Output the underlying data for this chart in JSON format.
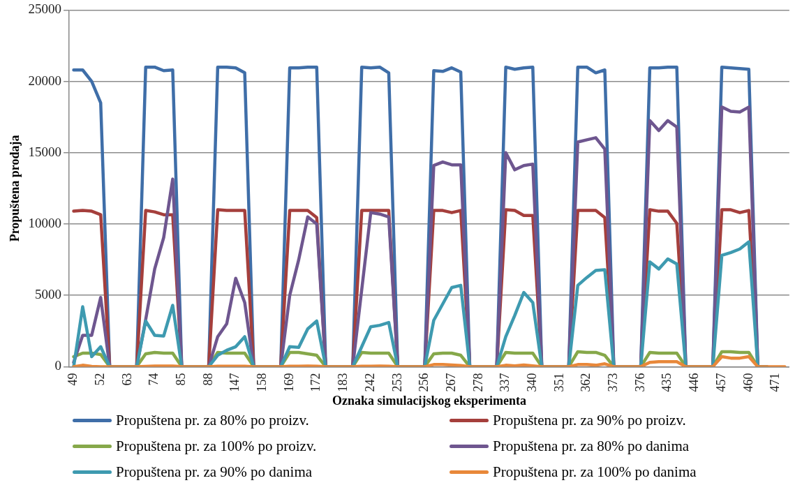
{
  "chart_data": {
    "type": "line",
    "xlabel": "Oznaka simulacijskog eksperimenta",
    "ylabel": "Propuštena prodaja",
    "categories": [
      "49",
      null,
      null,
      "52",
      null,
      null,
      "63",
      null,
      null,
      "74",
      null,
      null,
      "85",
      null,
      null,
      "88",
      null,
      null,
      "147",
      null,
      null,
      "158",
      null,
      null,
      "169",
      null,
      null,
      "172",
      null,
      null,
      "183",
      null,
      null,
      "242",
      null,
      null,
      "253",
      null,
      null,
      "256",
      null,
      null,
      "267",
      null,
      null,
      "278",
      null,
      null,
      "337",
      null,
      null,
      "340",
      null,
      null,
      "351",
      null,
      null,
      "362",
      null,
      null,
      "373",
      null,
      null,
      "376",
      null,
      null,
      "435",
      null,
      null,
      "446",
      null,
      null,
      "457",
      null,
      null,
      "460",
      null,
      null,
      "471",
      null
    ],
    "series": [
      {
        "name": "Propuštena pr. za 80% po proizv.",
        "color": "#3f6ea8",
        "values": [
          20800,
          20800,
          20000,
          18500,
          0,
          0,
          0,
          0,
          21000,
          21000,
          20750,
          20800,
          0,
          0,
          0,
          0,
          21000,
          21000,
          20950,
          20600,
          0,
          0,
          0,
          0,
          20950,
          20950,
          21000,
          21000,
          0,
          0,
          0,
          0,
          21000,
          20950,
          21000,
          20600,
          0,
          0,
          0,
          0,
          20750,
          20700,
          20950,
          20650,
          0,
          0,
          0,
          0,
          21000,
          20850,
          20950,
          21000,
          0,
          0,
          0,
          0,
          21000,
          21000,
          20600,
          20800,
          0,
          0,
          0,
          0,
          20950,
          20950,
          21000,
          21000,
          0,
          0,
          0,
          0,
          21000,
          20950,
          20900,
          20850,
          0,
          0,
          null,
          null
        ]
      },
      {
        "name": "Propuštena pr. za 90% po proizv.",
        "color": "#a53f3c",
        "values": [
          10900,
          10950,
          10900,
          10650,
          0,
          0,
          0,
          0,
          10950,
          10850,
          10650,
          10650,
          0,
          0,
          0,
          0,
          11000,
          10950,
          10950,
          10950,
          0,
          0,
          0,
          0,
          10950,
          10950,
          10950,
          10450,
          0,
          0,
          0,
          0,
          10950,
          10950,
          10950,
          10950,
          0,
          0,
          0,
          0,
          10950,
          10950,
          10800,
          10950,
          0,
          0,
          0,
          0,
          11000,
          10950,
          10600,
          10600,
          0,
          0,
          0,
          0,
          10950,
          10950,
          10950,
          10450,
          0,
          0,
          0,
          0,
          11000,
          10900,
          10900,
          10050,
          0,
          0,
          0,
          0,
          11000,
          11000,
          10800,
          10950,
          0,
          0,
          null,
          null
        ]
      },
      {
        "name": "Propuštena pr. za 100% po proizv.",
        "color": "#86a84a",
        "values": [
          700,
          950,
          950,
          850,
          0,
          0,
          0,
          0,
          900,
          1000,
          950,
          950,
          0,
          0,
          0,
          0,
          1000,
          950,
          950,
          950,
          0,
          0,
          0,
          0,
          1000,
          1000,
          900,
          800,
          0,
          0,
          0,
          0,
          1000,
          950,
          950,
          950,
          0,
          0,
          0,
          0,
          900,
          950,
          950,
          800,
          0,
          0,
          0,
          0,
          1000,
          950,
          950,
          950,
          0,
          0,
          0,
          0,
          1050,
          1000,
          1000,
          800,
          0,
          0,
          0,
          0,
          1000,
          950,
          950,
          950,
          0,
          0,
          0,
          0,
          1050,
          1050,
          1000,
          1000,
          0,
          0,
          null,
          null
        ]
      },
      {
        "name": "Propuštena pr. za 80% po danima",
        "color": "#6e568f",
        "values": [
          300,
          2200,
          2200,
          4850,
          0,
          0,
          0,
          0,
          3300,
          6850,
          9050,
          13150,
          0,
          0,
          0,
          0,
          2100,
          3000,
          6200,
          4500,
          0,
          0,
          0,
          0,
          5000,
          7500,
          10500,
          10000,
          0,
          0,
          0,
          0,
          5400,
          10800,
          10700,
          10500,
          0,
          0,
          0,
          0,
          14100,
          14350,
          14150,
          14150,
          0,
          0,
          0,
          0,
          15000,
          13800,
          14100,
          14200,
          0,
          0,
          0,
          0,
          15750,
          15900,
          16050,
          15250,
          0,
          0,
          0,
          0,
          17250,
          16550,
          17250,
          16800,
          0,
          0,
          0,
          0,
          18200,
          17900,
          17850,
          18200,
          0,
          0,
          null,
          null
        ]
      },
      {
        "name": "Propuštena pr. za 90% po danima",
        "color": "#3e9ab0",
        "values": [
          0,
          4200,
          700,
          1400,
          0,
          0,
          0,
          0,
          3200,
          2200,
          2150,
          4300,
          0,
          0,
          0,
          0,
          800,
          1150,
          1400,
          2100,
          0,
          0,
          0,
          0,
          1400,
          1350,
          2650,
          3200,
          0,
          0,
          0,
          0,
          1400,
          2800,
          2900,
          3100,
          0,
          0,
          0,
          0,
          3250,
          4400,
          5550,
          5700,
          0,
          0,
          0,
          0,
          2100,
          3600,
          5200,
          4500,
          0,
          0,
          0,
          0,
          5700,
          6250,
          6750,
          6800,
          0,
          0,
          0,
          0,
          7350,
          6850,
          7550,
          7200,
          0,
          0,
          0,
          0,
          7800,
          8000,
          8250,
          8750,
          0,
          0,
          null,
          null
        ]
      },
      {
        "name": "Propuštena pr. za 100% po danima",
        "color": "#e8883a",
        "values": [
          0,
          100,
          20,
          0,
          0,
          0,
          0,
          0,
          20,
          50,
          50,
          50,
          0,
          0,
          0,
          0,
          30,
          30,
          30,
          30,
          0,
          0,
          0,
          0,
          30,
          30,
          50,
          30,
          0,
          0,
          0,
          0,
          30,
          30,
          50,
          30,
          0,
          0,
          0,
          0,
          150,
          150,
          120,
          80,
          0,
          0,
          0,
          0,
          100,
          60,
          120,
          60,
          0,
          0,
          0,
          0,
          150,
          150,
          100,
          200,
          0,
          0,
          0,
          0,
          300,
          350,
          350,
          350,
          0,
          0,
          0,
          0,
          700,
          600,
          600,
          700,
          0,
          0,
          0,
          0
        ]
      }
    ],
    "ylim": [
      0,
      25000
    ],
    "yticks": [
      0,
      5000,
      10000,
      15000,
      20000,
      25000
    ],
    "grid": "y",
    "legend": "bottom",
    "marker": "none",
    "line_style": "solid"
  }
}
